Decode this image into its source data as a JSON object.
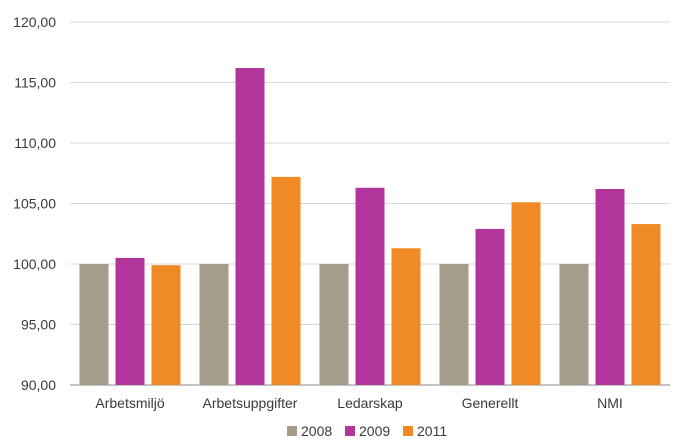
{
  "chart_data": {
    "type": "bar",
    "categories": [
      "Arbetsmiljö",
      "Arbetsuppgifter",
      "Ledarskap",
      "Generellt",
      "NMI"
    ],
    "series": [
      {
        "name": "2008",
        "values": [
          100.0,
          100.0,
          100.0,
          100.0,
          100.0
        ],
        "color": "#a59c8c"
      },
      {
        "name": "2009",
        "values": [
          100.5,
          116.2,
          106.3,
          102.9,
          106.2
        ],
        "color": "#b2359b"
      },
      {
        "name": "2011",
        "values": [
          99.9,
          107.2,
          101.3,
          105.1,
          103.3
        ],
        "color": "#f08a24"
      }
    ],
    "yticks": [
      "90,00",
      "95,00",
      "100,00",
      "105,00",
      "110,00",
      "115,00",
      "120,00"
    ],
    "ylim": [
      90,
      120
    ],
    "grid": true,
    "legend_position": "bottom",
    "title": "",
    "xlabel": "",
    "ylabel": ""
  }
}
